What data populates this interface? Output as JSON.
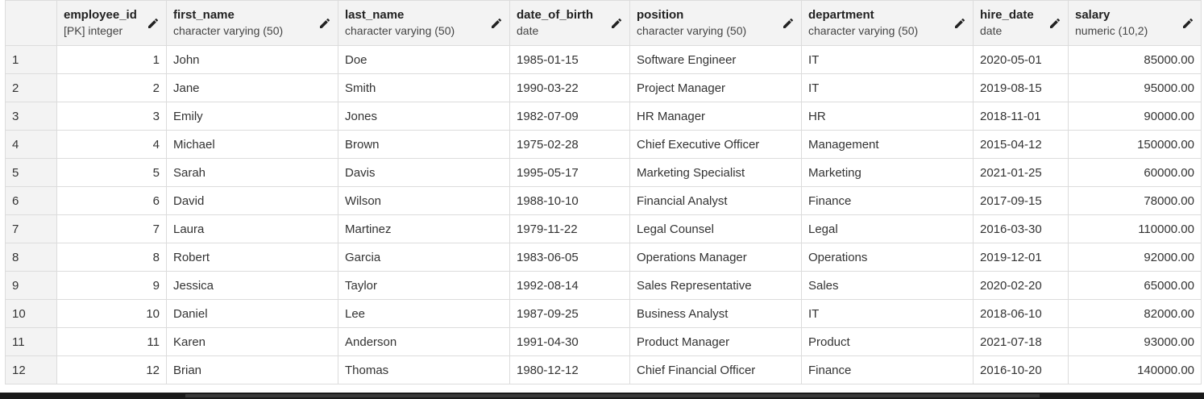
{
  "columns": [
    {
      "key": "employee_id",
      "name": "employee_id",
      "type": "[PK] integer",
      "align": "right"
    },
    {
      "key": "first_name",
      "name": "first_name",
      "type": "character varying (50)",
      "align": "left"
    },
    {
      "key": "last_name",
      "name": "last_name",
      "type": "character varying (50)",
      "align": "left"
    },
    {
      "key": "date_of_birth",
      "name": "date_of_birth",
      "type": "date",
      "align": "left"
    },
    {
      "key": "position",
      "name": "position",
      "type": "character varying (50)",
      "align": "left"
    },
    {
      "key": "department",
      "name": "department",
      "type": "character varying (50)",
      "align": "left"
    },
    {
      "key": "hire_date",
      "name": "hire_date",
      "type": "date",
      "align": "left"
    },
    {
      "key": "salary",
      "name": "salary",
      "type": "numeric (10,2)",
      "align": "right"
    }
  ],
  "icons": {
    "column_edit": "pencil-icon"
  },
  "rows": [
    {
      "row": "1",
      "employee_id": "1",
      "first_name": "John",
      "last_name": "Doe",
      "date_of_birth": "1985-01-15",
      "position": "Software Engineer",
      "department": "IT",
      "hire_date": "2020-05-01",
      "salary": "85000.00"
    },
    {
      "row": "2",
      "employee_id": "2",
      "first_name": "Jane",
      "last_name": "Smith",
      "date_of_birth": "1990-03-22",
      "position": "Project Manager",
      "department": "IT",
      "hire_date": "2019-08-15",
      "salary": "95000.00"
    },
    {
      "row": "3",
      "employee_id": "3",
      "first_name": "Emily",
      "last_name": "Jones",
      "date_of_birth": "1982-07-09",
      "position": "HR Manager",
      "department": "HR",
      "hire_date": "2018-11-01",
      "salary": "90000.00"
    },
    {
      "row": "4",
      "employee_id": "4",
      "first_name": "Michael",
      "last_name": "Brown",
      "date_of_birth": "1975-02-28",
      "position": "Chief Executive Officer",
      "department": "Management",
      "hire_date": "2015-04-12",
      "salary": "150000.00"
    },
    {
      "row": "5",
      "employee_id": "5",
      "first_name": "Sarah",
      "last_name": "Davis",
      "date_of_birth": "1995-05-17",
      "position": "Marketing Specialist",
      "department": "Marketing",
      "hire_date": "2021-01-25",
      "salary": "60000.00"
    },
    {
      "row": "6",
      "employee_id": "6",
      "first_name": "David",
      "last_name": "Wilson",
      "date_of_birth": "1988-10-10",
      "position": "Financial Analyst",
      "department": "Finance",
      "hire_date": "2017-09-15",
      "salary": "78000.00"
    },
    {
      "row": "7",
      "employee_id": "7",
      "first_name": "Laura",
      "last_name": "Martinez",
      "date_of_birth": "1979-11-22",
      "position": "Legal Counsel",
      "department": "Legal",
      "hire_date": "2016-03-30",
      "salary": "110000.00"
    },
    {
      "row": "8",
      "employee_id": "8",
      "first_name": "Robert",
      "last_name": "Garcia",
      "date_of_birth": "1983-06-05",
      "position": "Operations Manager",
      "department": "Operations",
      "hire_date": "2019-12-01",
      "salary": "92000.00"
    },
    {
      "row": "9",
      "employee_id": "9",
      "first_name": "Jessica",
      "last_name": "Taylor",
      "date_of_birth": "1992-08-14",
      "position": "Sales Representative",
      "department": "Sales",
      "hire_date": "2020-02-20",
      "salary": "65000.00"
    },
    {
      "row": "10",
      "employee_id": "10",
      "first_name": "Daniel",
      "last_name": "Lee",
      "date_of_birth": "1987-09-25",
      "position": "Business Analyst",
      "department": "IT",
      "hire_date": "2018-06-10",
      "salary": "82000.00"
    },
    {
      "row": "11",
      "employee_id": "11",
      "first_name": "Karen",
      "last_name": "Anderson",
      "date_of_birth": "1991-04-30",
      "position": "Product Manager",
      "department": "Product",
      "hire_date": "2021-07-18",
      "salary": "93000.00"
    },
    {
      "row": "12",
      "employee_id": "12",
      "first_name": "Brian",
      "last_name": "Thomas",
      "date_of_birth": "1980-12-12",
      "position": "Chief Financial Officer",
      "department": "Finance",
      "hire_date": "2016-10-20",
      "salary": "140000.00"
    }
  ]
}
